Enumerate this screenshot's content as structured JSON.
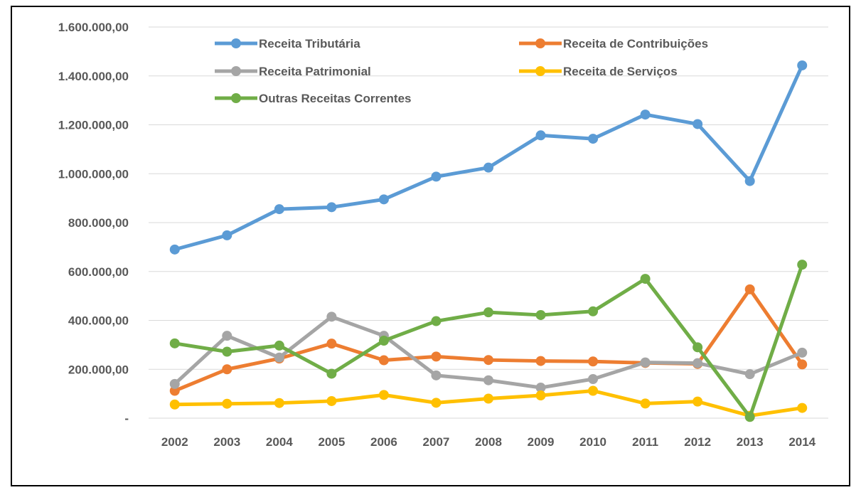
{
  "chart_data": {
    "type": "line",
    "title": "",
    "xlabel": "",
    "ylabel": "",
    "categories": [
      "2002",
      "2003",
      "2004",
      "2005",
      "2006",
      "2007",
      "2008",
      "2009",
      "2010",
      "2011",
      "2012",
      "2013",
      "2014"
    ],
    "ylim": [
      0,
      1600000
    ],
    "y_ticks": [
      0,
      200000,
      400000,
      600000,
      800000,
      1000000,
      1200000,
      1400000,
      1600000
    ],
    "y_tick_labels": [
      "-",
      "200.000,00",
      "400.000,00",
      "600.000,00",
      "800.000,00",
      "1.000.000,00",
      "1.200.000,00",
      "1.400.000,00",
      "1.600.000,00"
    ],
    "grid": true,
    "legend_position": "top",
    "series": [
      {
        "name": "Receita Tributária",
        "color": "#5B9BD5",
        "values": [
          690000,
          748000,
          855000,
          863000,
          895000,
          988000,
          1025000,
          1157000,
          1143000,
          1242000,
          1203000,
          970000,
          1443000
        ]
      },
      {
        "name": "Receita de Contribuições",
        "color": "#ED7D31",
        "values": [
          112000,
          200000,
          244000,
          305000,
          237000,
          252000,
          238000,
          234000,
          232000,
          226000,
          222000,
          527000,
          220000
        ]
      },
      {
        "name": "Receita Patrimonial",
        "color": "#A5A5A5",
        "values": [
          140000,
          337000,
          248000,
          415000,
          337000,
          175000,
          155000,
          125000,
          160000,
          228000,
          225000,
          180000,
          268000
        ]
      },
      {
        "name": "Receita de Serviços",
        "color": "#FFC000",
        "values": [
          56000,
          59000,
          62000,
          70000,
          95000,
          63000,
          80000,
          93000,
          112000,
          60000,
          68000,
          10000,
          42000
        ]
      },
      {
        "name": "Outras Receitas Correntes",
        "color": "#70AD47",
        "values": [
          306000,
          272000,
          297000,
          182000,
          317000,
          397000,
          433000,
          422000,
          437000,
          570000,
          290000,
          5000,
          628000
        ]
      }
    ]
  }
}
